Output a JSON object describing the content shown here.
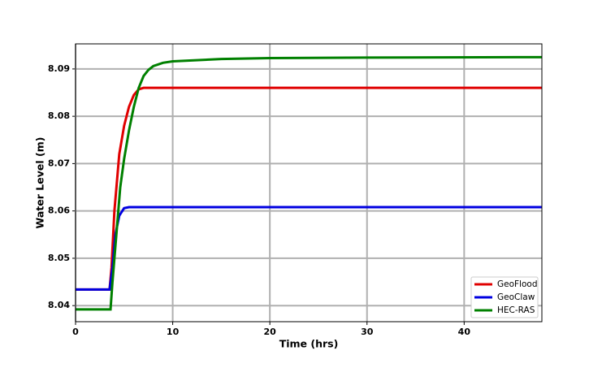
{
  "chart_data": {
    "type": "line",
    "x_label": "Time (hrs)",
    "y_label": "Water Level (m)",
    "xlim": [
      0,
      48
    ],
    "ylim": [
      8.0366,
      8.0953
    ],
    "xticks": [
      0,
      10,
      20,
      30,
      40
    ],
    "yticks": [
      8.04,
      8.05,
      8.06,
      8.07,
      8.08,
      8.09
    ],
    "grid": true,
    "legend": "lower right",
    "series": [
      {
        "name": "GeoFlood",
        "color": "#e00000",
        "x": [
          0,
          3.5,
          3.7,
          4,
          4.5,
          5,
          5.5,
          6,
          6.5,
          7,
          48
        ],
        "values": [
          8.0434,
          8.0434,
          8.048,
          8.06,
          8.072,
          8.078,
          8.082,
          8.0845,
          8.0857,
          8.086,
          8.086
        ]
      },
      {
        "name": "GeoClaw",
        "color": "#0000e0",
        "x": [
          0,
          3.5,
          3.8,
          4.1,
          4.5,
          5,
          5.5,
          48
        ],
        "values": [
          8.0434,
          8.0434,
          8.048,
          8.055,
          8.059,
          8.0606,
          8.0608,
          8.0608
        ]
      },
      {
        "name": "HEC-RAS",
        "color": "#008000",
        "x": [
          0,
          3.6,
          3.8,
          4.2,
          4.6,
          5,
          5.5,
          6,
          6.5,
          7,
          7.5,
          8,
          9,
          10,
          15,
          20,
          30,
          48
        ],
        "values": [
          8.0392,
          8.0392,
          8.045,
          8.055,
          8.065,
          8.071,
          8.077,
          8.082,
          8.086,
          8.0885,
          8.0898,
          8.0906,
          8.0913,
          8.0916,
          8.0921,
          8.0923,
          8.0924,
          8.0925
        ]
      }
    ]
  }
}
